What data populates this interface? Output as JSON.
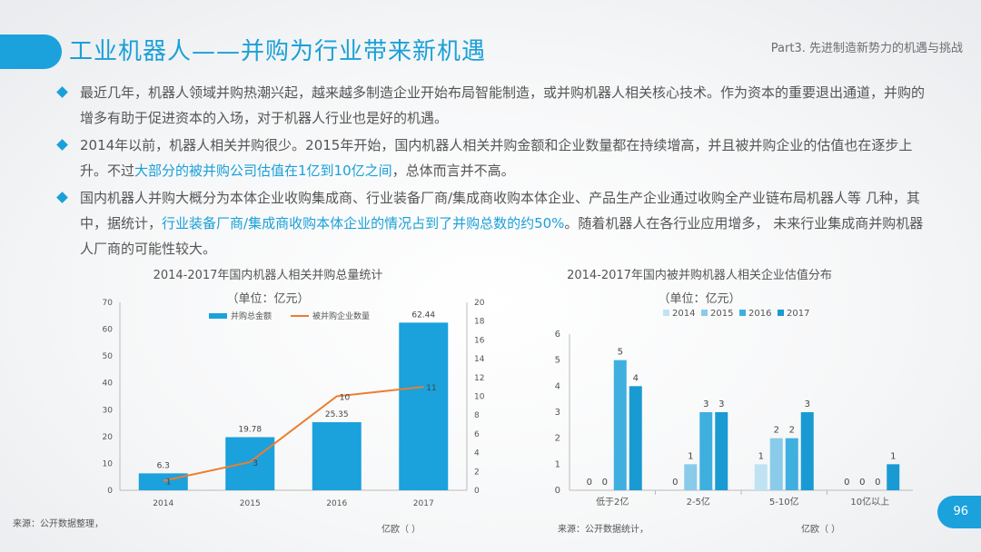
{
  "slide": {
    "title": "工业机器人——并购为行业带来新机遇",
    "part": "Part3. 先进制造新势力的机遇与挑战",
    "page_number": "96",
    "bullets": [
      {
        "segments": [
          {
            "text": "最近几年，机器人领域并购热潮兴起，越来越多制造企业开始布局智能制造，或并购机器人相关核心技术。作为资本的重要退出通道，并购的增多有助于促进资本的入场，对于机器人行业也是好的机遇。",
            "highlight": false
          }
        ]
      },
      {
        "segments": [
          {
            "text": "2014年以前，机器人相关并购很少。2015年开始，国内机器人相关并购金额和企业数量都在持续增高，并且被并购企业的估值也在逐步上升。不过",
            "highlight": false
          },
          {
            "text": "大部分的被并购公司估值在1亿到10亿之间",
            "highlight": true
          },
          {
            "text": "，总体而言并不高。",
            "highlight": false
          }
        ]
      },
      {
        "segments": [
          {
            "text": "国内机器人并购大概分为本体企业收购集成商、行业装备厂商/集成商收购本体企业、产品生产企业通过收购全产业链布局机器人等 几种，其中，据统计，",
            "highlight": false
          },
          {
            "text": "行业装备厂商/集成商收购本体企业的情况占到了并购总数的约50%",
            "highlight": true
          },
          {
            "text": "。随着机器人在各行业应用增多， 未来行业集成商并购机器人厂商的可能性较大。",
            "highlight": false
          }
        ]
      }
    ],
    "colors": {
      "accent": "#1aa0d8",
      "bar": "#1ba1dc",
      "line": "#ed7d31"
    }
  },
  "left_chart": {
    "title": "2014-2017年国内机器人相关并购总量统计",
    "unit": "（单位：亿元）",
    "source": "来源：公开数据整理，",
    "axis_note": "亿欧（ ）"
  },
  "right_chart": {
    "title": "2014-2017年国内被并购机器人相关企业估值分布",
    "unit": "（单位：亿元）",
    "source": "来源：公开数据统计，",
    "axis_note": "亿欧（ ）"
  },
  "chart_data": [
    {
      "type": "bar",
      "title": "2014-2017年国内机器人相关并购总量统计",
      "subtitle": "（单位：亿元）",
      "categories": [
        "2014",
        "2015",
        "2016",
        "2017"
      ],
      "series": [
        {
          "name": "并购总金额",
          "type": "bar",
          "axis": "left",
          "values": [
            6.3,
            19.78,
            25.35,
            62.44
          ],
          "labels": [
            "6.3",
            "19.78",
            "25.35",
            "62.44"
          ],
          "color": "#1ba1dc"
        },
        {
          "name": "被并购企业数量",
          "type": "line",
          "axis": "right",
          "values": [
            1,
            3,
            10,
            11
          ],
          "labels": [
            "1",
            "3",
            "10",
            "11"
          ],
          "color": "#ed7d31"
        }
      ],
      "ylim_left": [
        0,
        70
      ],
      "yticks_left": [
        "0",
        "10",
        "20",
        "30",
        "40",
        "50",
        "60",
        "70"
      ],
      "ylim_right": [
        0,
        20
      ],
      "yticks_right": [
        "0",
        "2",
        "4",
        "6",
        "8",
        "10",
        "12",
        "14",
        "16",
        "18",
        "20"
      ],
      "legend": "top",
      "grid": false
    },
    {
      "type": "bar",
      "title": "2014-2017年国内被并购机器人相关企业估值分布",
      "subtitle": "（单位：亿元）",
      "categories": [
        "低于2亿",
        "2-5亿",
        "5-10亿",
        "10亿以上"
      ],
      "series": [
        {
          "name": "2014",
          "values": [
            0,
            0,
            1,
            0
          ],
          "labels": [
            "0",
            "0",
            "1",
            "0"
          ],
          "color": "#bfe3f3"
        },
        {
          "name": "2015",
          "values": [
            0,
            1,
            2,
            0
          ],
          "labels": [
            "0",
            "1",
            "2",
            "0"
          ],
          "color": "#89cbe9"
        },
        {
          "name": "2016",
          "values": [
            5,
            3,
            2,
            0
          ],
          "labels": [
            "5",
            "3",
            "2",
            "0"
          ],
          "color": "#3fafe0"
        },
        {
          "name": "2017",
          "values": [
            4,
            3,
            3,
            1
          ],
          "labels": [
            "4",
            "3",
            "3",
            "1"
          ],
          "color": "#1a9ad3"
        }
      ],
      "ylim": [
        0,
        6
      ],
      "yticks": [
        "0",
        "1",
        "2",
        "3",
        "4",
        "5",
        "6"
      ],
      "legend": "top",
      "grid": false
    }
  ]
}
